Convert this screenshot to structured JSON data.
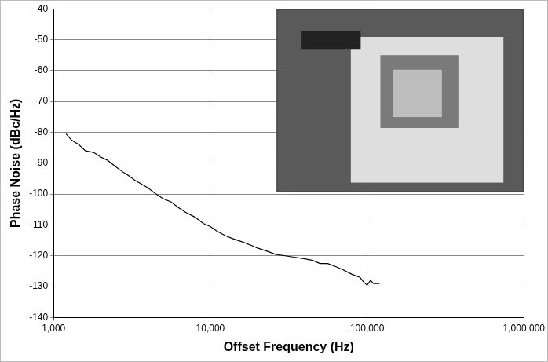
{
  "chart_data": {
    "type": "line",
    "xlabel": "Offset Frequency (Hz)",
    "ylabel": "Phase Noise (dBc/Hz)",
    "x": [
      1200,
      1300,
      1450,
      1600,
      1800,
      2000,
      2200,
      2400,
      2700,
      3000,
      3300,
      3700,
      4000,
      4500,
      5000,
      5600,
      6300,
      7000,
      8000,
      9000,
      10000,
      11000,
      12500,
      14000,
      16000,
      18000,
      20000,
      23000,
      26000,
      30000,
      35000,
      40000,
      45000,
      50000,
      56000,
      63000,
      70000,
      80000,
      90000,
      95000,
      100000,
      105000,
      110000,
      120000
    ],
    "values": [
      -80.5,
      -82.5,
      -84,
      -86,
      -86.5,
      -88,
      -89,
      -90.5,
      -92.5,
      -94,
      -95.5,
      -97,
      -98,
      -100,
      -101.5,
      -102.5,
      -104.5,
      -106,
      -107.5,
      -109.5,
      -110.5,
      -112,
      -113.5,
      -114.5,
      -115.5,
      -116.5,
      -117.5,
      -118.5,
      -119.5,
      -120,
      -120.5,
      -121,
      -121.5,
      -122.5,
      -122.5,
      -123.5,
      -124.5,
      -126,
      -127,
      -128.5,
      -129.5,
      -128,
      -129,
      -129
    ],
    "color": "#000000",
    "log": "x",
    "xlim": [
      1000,
      1000000
    ],
    "xticks": [
      {
        "value": 1000,
        "label": "1,000"
      },
      {
        "value": 10000,
        "label": "10,000"
      },
      {
        "value": 100000,
        "label": "100,000"
      },
      {
        "value": 1000000,
        "label": "1,000,000"
      }
    ],
    "ylim": [
      -140,
      -40
    ],
    "yticks": [
      -140,
      -130,
      -120,
      -110,
      -100,
      -90,
      -80,
      -70,
      -60,
      -50,
      -40
    ],
    "grid": true
  }
}
